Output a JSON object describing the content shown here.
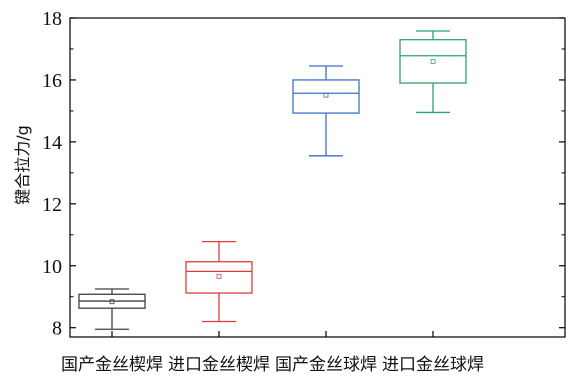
{
  "chart_data": {
    "type": "box",
    "title": "",
    "xlabel": "",
    "ylabel": "键合拉力/g",
    "ylim": [
      7.7,
      18
    ],
    "yticks": [
      8,
      10,
      12,
      14,
      16,
      18
    ],
    "grid": false,
    "legend": "none",
    "categories": [
      "国产金丝楔焊",
      "进口金丝楔焊",
      "国产金丝球焊",
      "进口金丝球焊"
    ],
    "series": [
      {
        "color": "#404040",
        "min": 7.95,
        "q1": 8.63,
        "median": 8.86,
        "q3": 9.08,
        "max": 9.25,
        "mean": 8.84
      },
      {
        "color": "#e03c3c",
        "min": 8.2,
        "q1": 9.12,
        "median": 9.82,
        "q3": 10.13,
        "max": 10.78,
        "mean": 9.66
      },
      {
        "color": "#3a72c4",
        "min": 13.55,
        "q1": 14.93,
        "median": 15.57,
        "q3": 16.0,
        "max": 16.45,
        "mean": 15.51
      },
      {
        "color": "#2ea36a",
        "min": 14.95,
        "q1": 15.9,
        "median": 16.78,
        "q3": 17.3,
        "max": 17.58,
        "mean": 16.6
      }
    ]
  }
}
